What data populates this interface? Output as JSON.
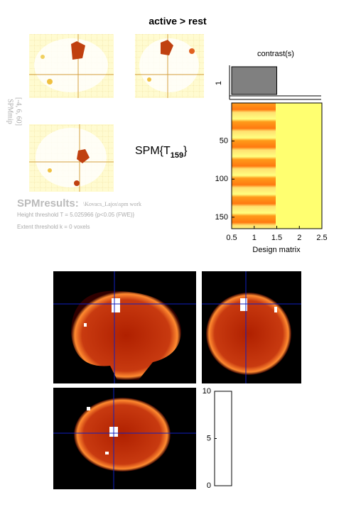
{
  "header": {
    "title": "active > rest"
  },
  "mip": {
    "label": "SPMmip",
    "coords": "[-4, 6, 60]"
  },
  "stat": {
    "prefix": "SPM{T",
    "subscript": "159",
    "suffix": "}"
  },
  "contrast": {
    "title": "contrast(s)",
    "ytick": "1",
    "weights": [
      1,
      0
    ]
  },
  "design_matrix": {
    "xlabel": "Design matrix",
    "xlim": [
      0.5,
      2.5
    ],
    "xticks": [
      0.5,
      1,
      1.5,
      2,
      2.5
    ],
    "ylim": [
      0,
      165
    ],
    "yticks": [
      50,
      100,
      150
    ]
  },
  "results": {
    "label": "SPMresults:",
    "path": "\\Kovacs_Lajos\\spm work",
    "height": "Height threshold T = 5.025966  {p<0.05 (FWE)}",
    "extent": "Extent threshold k = 0 voxels"
  },
  "colorbar": {
    "ylim": [
      0,
      10
    ],
    "yticks": [
      0,
      5,
      10
    ]
  }
}
